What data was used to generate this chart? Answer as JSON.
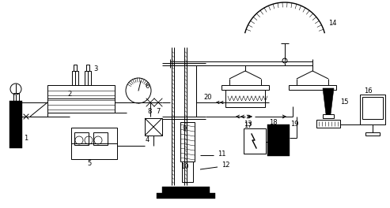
{
  "bg_color": "#ffffff",
  "lc": "#000000",
  "figsize": [
    4.93,
    2.64
  ],
  "dpi": 100
}
